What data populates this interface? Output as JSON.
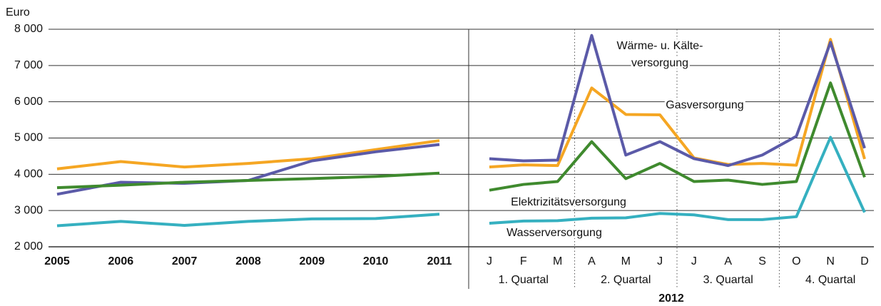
{
  "chart_data": [
    {
      "type": "line",
      "y_label": "Euro",
      "categories": [
        "2005",
        "2006",
        "2007",
        "2008",
        "2009",
        "2010",
        "2011"
      ],
      "ylim": [
        2000,
        8000
      ],
      "yticks": [
        {
          "value": 2000,
          "label": "2 000"
        },
        {
          "value": 3000,
          "label": "3 000"
        },
        {
          "value": 4000,
          "label": "4 000"
        },
        {
          "value": 5000,
          "label": "5 000"
        },
        {
          "value": 6000,
          "label": "6 000"
        },
        {
          "value": 7000,
          "label": "7 000"
        },
        {
          "value": 8000,
          "label": "8 000"
        }
      ],
      "grid": true,
      "series": [
        {
          "color": "#f5a623",
          "values": [
            4150,
            4350,
            4200,
            4300,
            4430,
            4680,
            4930
          ]
        },
        {
          "color": "#5b5aa8",
          "values": [
            3450,
            3780,
            3750,
            3830,
            4370,
            4620,
            4820
          ]
        },
        {
          "color": "#3f8a2e",
          "values": [
            3630,
            3700,
            3780,
            3830,
            3880,
            3940,
            4030
          ]
        },
        {
          "color": "#35b0c0",
          "values": [
            2580,
            2700,
            2590,
            2700,
            2770,
            2780,
            2900
          ]
        }
      ]
    },
    {
      "type": "line",
      "categories": [
        "J",
        "F",
        "M",
        "A",
        "M",
        "J",
        "J",
        "A",
        "S",
        "O",
        "N",
        "D"
      ],
      "quarters": [
        "1. Quartal",
        "2. Quartal",
        "3. Quartal",
        "4. Quartal"
      ],
      "year_label": "2012",
      "ylim": [
        2000,
        8000
      ],
      "grid": true,
      "series": [
        {
          "name": "Gasversorgung",
          "color": "#f5a623",
          "values": [
            4200,
            4260,
            4240,
            6380,
            5650,
            5640,
            4450,
            4270,
            4300,
            4250,
            7720,
            4420
          ]
        },
        {
          "name": "Wärme- u. Kälte-\nversorgung",
          "color": "#5b5aa8",
          "values": [
            4430,
            4370,
            4390,
            7830,
            4530,
            4900,
            4430,
            4240,
            4530,
            5050,
            7640,
            4720
          ]
        },
        {
          "name": "Elektrizitätsversorgung",
          "color": "#3f8a2e",
          "values": [
            3560,
            3720,
            3800,
            4900,
            3880,
            4300,
            3800,
            3840,
            3720,
            3800,
            6520,
            3920
          ]
        },
        {
          "name": "Wasserversorgung",
          "color": "#35b0c0",
          "values": [
            2650,
            2710,
            2720,
            2790,
            2800,
            2920,
            2880,
            2750,
            2750,
            2830,
            5020,
            2950
          ]
        }
      ]
    }
  ]
}
